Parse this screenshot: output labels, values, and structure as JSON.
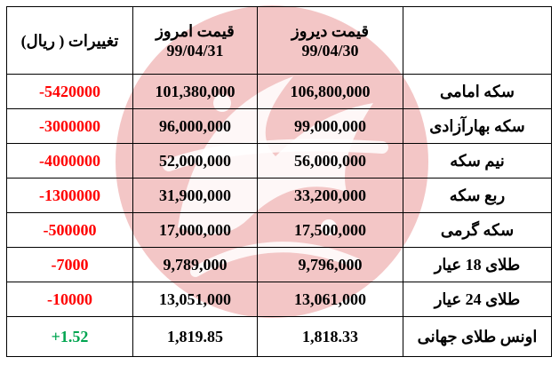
{
  "header": {
    "change_label": "تغییرات ( ریال)",
    "today_label": "قیمت امروز",
    "today_date": "99/04/31",
    "yesterday_label": "قیمت دیروز",
    "yesterday_date": "99/04/30",
    "item_label": ""
  },
  "rows": [
    {
      "name": "سکه امامی",
      "yesterday": "106,800,000",
      "today": "101,380,000",
      "change": "-5420000"
    },
    {
      "name": "سکه بهارآزادی",
      "yesterday": "99,000,000",
      "today": "96,000,000",
      "change": "-3000000"
    },
    {
      "name": "نیم سکه",
      "yesterday": "56,000,000",
      "today": "52,000,000",
      "change": "-4000000"
    },
    {
      "name": "ربع سکه",
      "yesterday": "33,200,000",
      "today": "31,900,000",
      "change": "-1300000"
    },
    {
      "name": "سکه گرمی",
      "yesterday": "17,500,000",
      "today": "17,000,000",
      "change": "-500000"
    },
    {
      "name": "طلای 18 عیار",
      "yesterday": "9,796,000",
      "today": "9,789,000",
      "change": "-7000"
    },
    {
      "name": "طلای 24 عیار",
      "yesterday": "13,061,000",
      "today": "13,051,000",
      "change": "-10000"
    },
    {
      "name": "اونس طلای جهانی",
      "yesterday": "1,818.33",
      "today": "1,819.85",
      "change": "+1.52"
    }
  ],
  "colors": {
    "negative": "#ff0000",
    "positive": "#00a550",
    "watermark": "#e88a8a"
  }
}
